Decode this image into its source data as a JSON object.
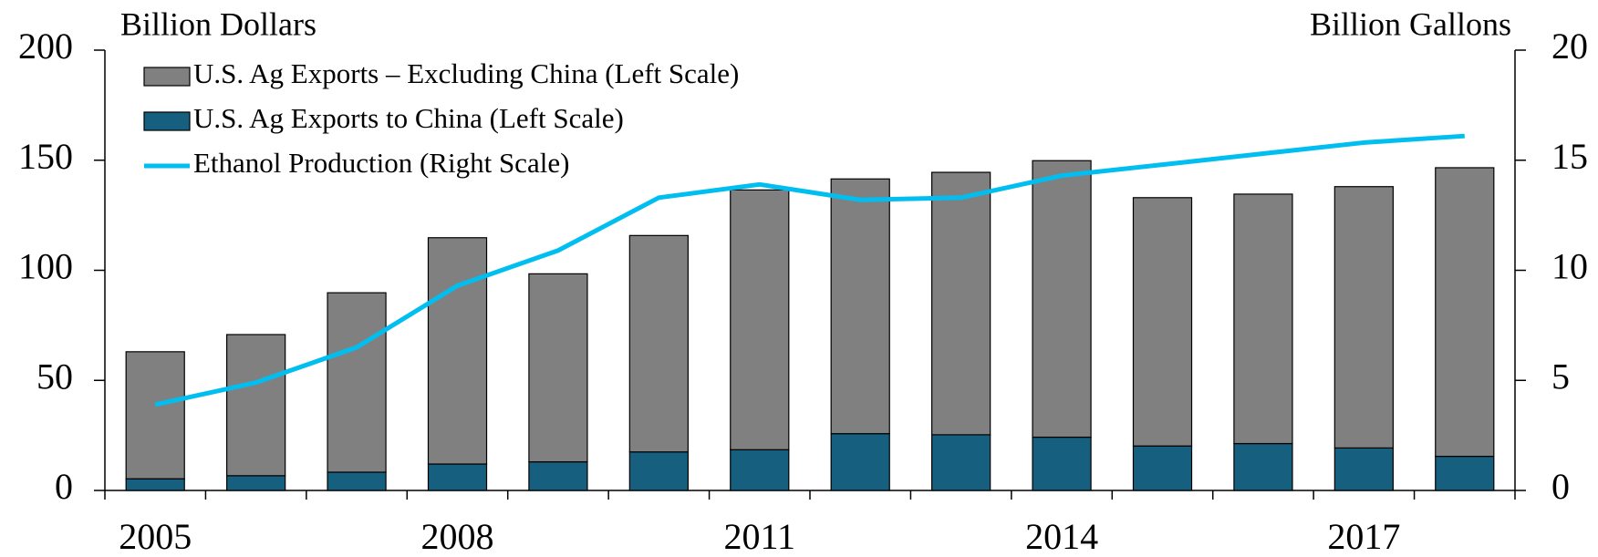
{
  "chart_data": {
    "type": "bar-line",
    "ylabel": "Billion Dollars",
    "y2label": "Billion Gallons",
    "categories": [
      "2005",
      null,
      null,
      "2008",
      null,
      null,
      "2011",
      null,
      null,
      "2014",
      null,
      null,
      "2017",
      null
    ],
    "series": [
      {
        "name": "U.S. Ag Exports – Excluding China (Left Scale)",
        "color": "#808080",
        "kind": "bar",
        "values": [
          57.7,
          64.1,
          81.5,
          102.8,
          85.4,
          98.3,
          118,
          115.7,
          119.2,
          125.6,
          112.8,
          113.3,
          118.7,
          131.1
        ]
      },
      {
        "name": "U.S. Ag Exports to China (Left Scale)",
        "color": "#175f7e",
        "kind": "bar",
        "values": [
          5.3,
          6.7,
          8.3,
          12,
          13,
          17.5,
          18.5,
          25.8,
          25.3,
          24.2,
          20.2,
          21.3,
          19.3,
          15.5
        ]
      },
      {
        "name": "Ethanol Production (Right Scale)",
        "color": "#00bff0",
        "kind": "line",
        "axis": "y2",
        "values": [
          3.9,
          4.9,
          6.5,
          9.3,
          10.9,
          13.3,
          13.9,
          13.2,
          13.3,
          14.3,
          14.8,
          15.3,
          15.8,
          16.1
        ]
      }
    ],
    "stacked": true,
    "ylim": [
      0,
      200
    ],
    "yticks": [
      0,
      50,
      100,
      150,
      200
    ],
    "y2lim": [
      0,
      20
    ],
    "y2ticks": [
      0,
      5,
      10,
      15,
      20
    ],
    "legend": "upper left",
    "grid": false
  }
}
